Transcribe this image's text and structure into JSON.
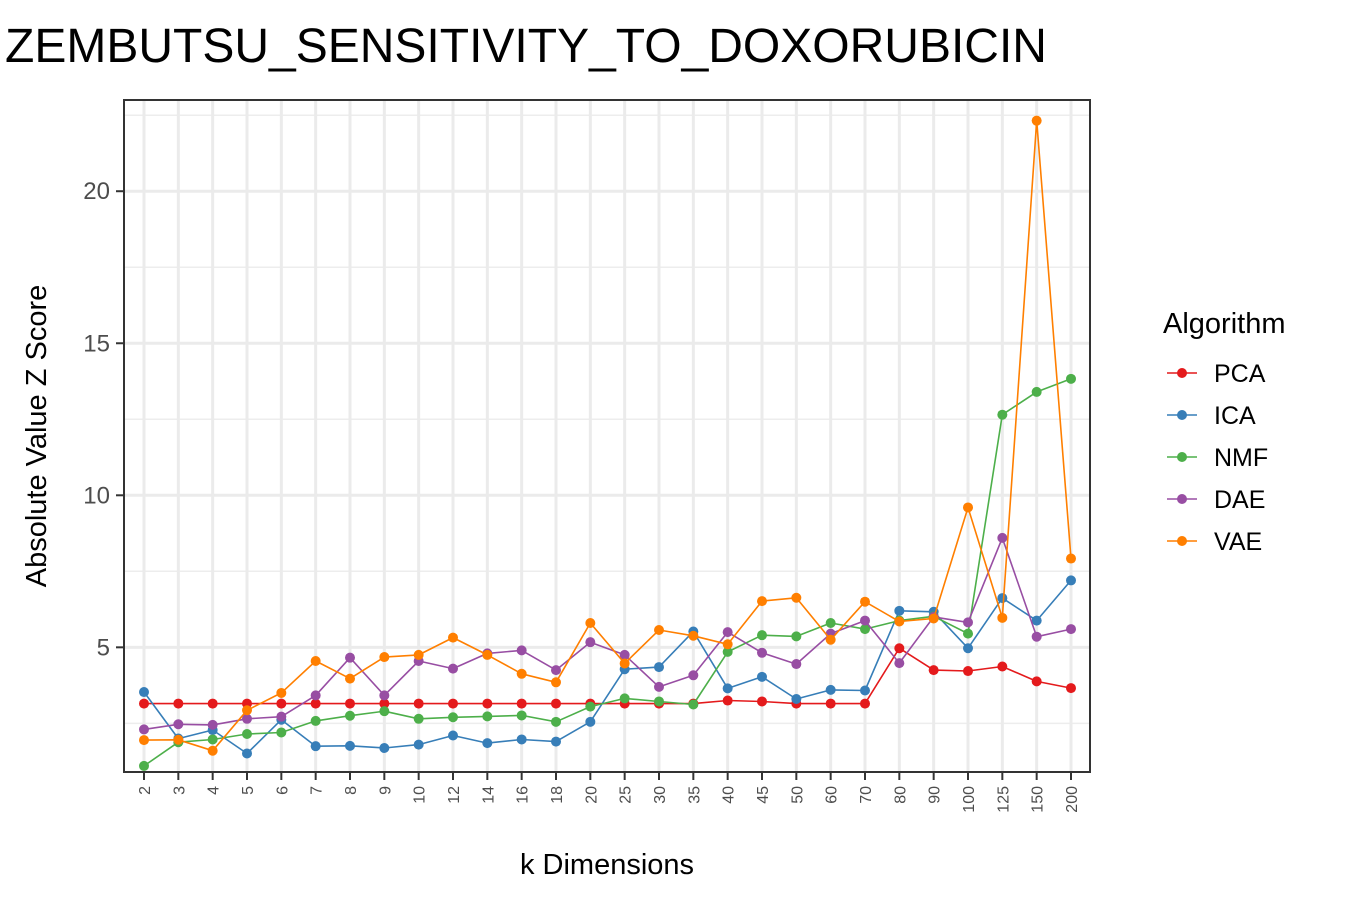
{
  "chart_data": {
    "type": "line",
    "title": "ZEMBUTSU_SENSITIVITY_TO_DOXORUBICIN",
    "xlabel": "k Dimensions",
    "ylabel": "Absolute Value Z Score",
    "ylim": [
      0.9,
      23.0
    ],
    "yticks": [
      5,
      10,
      15,
      20
    ],
    "grid": true,
    "legend_title": "Algorithm",
    "legend_position": "right",
    "categories": [
      "2",
      "3",
      "4",
      "5",
      "6",
      "7",
      "8",
      "9",
      "10",
      "12",
      "14",
      "16",
      "18",
      "20",
      "25",
      "30",
      "35",
      "40",
      "45",
      "50",
      "60",
      "70",
      "80",
      "90",
      "100",
      "125",
      "150",
      "200"
    ],
    "series": [
      {
        "name": "PCA",
        "color": "#e41a1c",
        "values": [
          3.15,
          3.15,
          3.15,
          3.15,
          3.15,
          3.15,
          3.15,
          3.15,
          3.15,
          3.15,
          3.15,
          3.15,
          3.15,
          3.15,
          3.15,
          3.15,
          3.15,
          3.25,
          3.22,
          3.15,
          3.15,
          3.15,
          4.97,
          4.25,
          4.22,
          4.37,
          3.88,
          3.66
        ]
      },
      {
        "name": "ICA",
        "color": "#377eb8",
        "values": [
          3.53,
          2.0,
          2.28,
          1.51,
          2.62,
          1.75,
          1.76,
          1.69,
          1.8,
          2.1,
          1.85,
          1.97,
          1.9,
          2.55,
          4.28,
          4.35,
          5.52,
          3.65,
          4.03,
          3.3,
          3.6,
          3.58,
          6.2,
          6.17,
          4.97,
          6.62,
          5.88,
          7.2
        ]
      },
      {
        "name": "NMF",
        "color": "#4daf4a",
        "values": [
          1.1,
          1.88,
          1.97,
          2.15,
          2.2,
          2.58,
          2.75,
          2.9,
          2.65,
          2.7,
          2.73,
          2.76,
          2.55,
          3.05,
          3.32,
          3.22,
          3.12,
          4.85,
          5.4,
          5.36,
          5.8,
          5.6,
          5.88,
          6.02,
          5.45,
          12.65,
          13.4,
          13.83
        ]
      },
      {
        "name": "DAE",
        "color": "#984ea3",
        "values": [
          2.3,
          2.47,
          2.45,
          2.65,
          2.72,
          3.42,
          4.66,
          3.42,
          4.55,
          4.3,
          4.8,
          4.9,
          4.25,
          5.17,
          4.75,
          3.7,
          4.08,
          5.5,
          4.82,
          4.45,
          5.45,
          5.88,
          4.48,
          6.0,
          5.82,
          8.6,
          5.35,
          5.6
        ]
      },
      {
        "name": "VAE",
        "color": "#ff7f00",
        "values": [
          1.95,
          1.96,
          1.6,
          2.93,
          3.5,
          4.55,
          3.97,
          4.68,
          4.75,
          5.32,
          4.75,
          4.13,
          3.85,
          5.8,
          4.47,
          5.57,
          5.38,
          5.1,
          6.52,
          6.63,
          5.25,
          6.5,
          5.85,
          5.95,
          9.6,
          5.97,
          22.32,
          7.92
        ]
      }
    ]
  }
}
